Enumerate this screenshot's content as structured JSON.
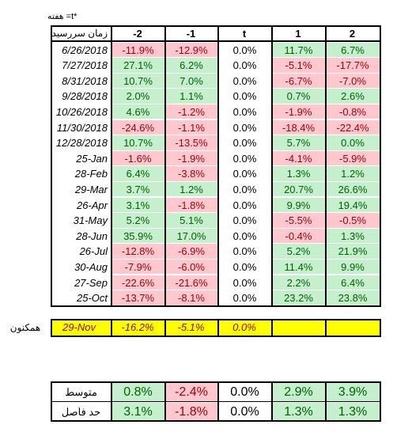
{
  "note": "هفته =t*",
  "table": {
    "header": [
      "زمان سررسید",
      "-2",
      "-1",
      "t",
      "1",
      "2"
    ],
    "rows": [
      [
        "6/26/2018",
        "-11.9%",
        "-12.9%",
        "0.0%",
        "11.7%",
        "6.7%"
      ],
      [
        "7/27/2018",
        "27.1%",
        "6.2%",
        "0.0%",
        "-5.1%",
        "-17.7%"
      ],
      [
        "8/31/2018",
        "10.7%",
        "7.0%",
        "0.0%",
        "-6.7%",
        "-7.0%"
      ],
      [
        "9/28/2018",
        "2.0%",
        "1.1%",
        "0.0%",
        "0.7%",
        "2.6%"
      ],
      [
        "10/26/2018",
        "4.6%",
        "-1.2%",
        "0.0%",
        "-1.9%",
        "-0.8%"
      ],
      [
        "11/30/2018",
        "-24.6%",
        "-1.1%",
        "0.0%",
        "-18.4%",
        "-22.4%"
      ],
      [
        "12/28/2018",
        "10.7%",
        "-13.5%",
        "0.0%",
        "5.7%",
        "0.0%"
      ],
      [
        "25-Jan",
        "-1.6%",
        "-1.9%",
        "0.0%",
        "-4.1%",
        "-5.9%"
      ],
      [
        "28-Feb",
        "6.4%",
        "-3.8%",
        "0.0%",
        "1.3%",
        "1.2%"
      ],
      [
        "29-Mar",
        "3.7%",
        "1.2%",
        "0.0%",
        "20.7%",
        "26.6%"
      ],
      [
        "26-Apr",
        "3.1%",
        "-1.8%",
        "0.0%",
        "9.9%",
        "19.4%"
      ],
      [
        "31-May",
        "5.2%",
        "5.1%",
        "0.0%",
        "-5.5%",
        "-0.5%"
      ],
      [
        "28-Jun",
        "35.9%",
        "17.0%",
        "0.0%",
        "-0.4%",
        "1.3%"
      ],
      [
        "26-Jul",
        "-12.8%",
        "-6.9%",
        "0.0%",
        "5.2%",
        "21.9%"
      ],
      [
        "30-Aug",
        "-7.9%",
        "-6.0%",
        "0.0%",
        "11.4%",
        "9.9%"
      ],
      [
        "27-Sep",
        "-22.6%",
        "-21.6%",
        "0.0%",
        "2.2%",
        "6.4%"
      ],
      [
        "25-Oct",
        "-13.7%",
        "-8.1%",
        "0.0%",
        "23.2%",
        "23.8%"
      ]
    ]
  },
  "current": {
    "label": "همکنون",
    "cells": [
      "29-Nov",
      "-16.2%",
      "-5.1%",
      "0.0%"
    ]
  },
  "summary": [
    [
      "متوسط",
      "0.8%",
      "-2.4%",
      "0.0%",
      "2.9%",
      "3.9%"
    ],
    [
      "حد فاصل",
      "3.1%",
      "-1.8%",
      "0.0%",
      "1.3%",
      "1.3%"
    ]
  ]
}
